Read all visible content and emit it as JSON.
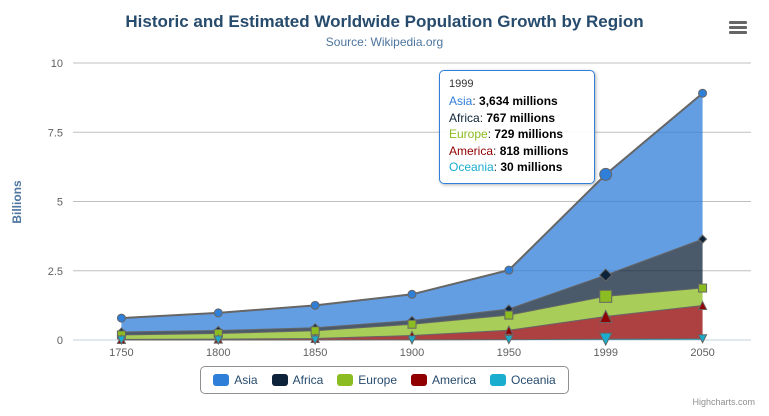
{
  "chart": {
    "title": "Historic and Estimated Worldwide Population Growth by Region",
    "subtitle": "Source: Wikipedia.org",
    "credits": "Highcharts.com",
    "menu_icon": "hamburger-icon"
  },
  "chart_data": {
    "type": "area",
    "stacking": "normal",
    "title": "Historic and Estimated Worldwide Population Growth by Region",
    "subtitle": "Source: Wikipedia.org",
    "xlabel": "",
    "ylabel": "Billions",
    "ylim": [
      0,
      10
    ],
    "yticks": [
      0,
      2.5,
      5,
      7.5,
      10
    ],
    "categories": [
      "1750",
      "1800",
      "1850",
      "1900",
      "1950",
      "1999",
      "2050"
    ],
    "units": "millions",
    "grid": true,
    "legend_position": "bottom",
    "line_color": "#666666",
    "fill_opacity": 0.75,
    "grid_line_color": "#C0C0C0",
    "axis_line_color": "#C0D0E0",
    "axis_label_color": "#606060",
    "hovered_category": "1999",
    "hovered_index": 5,
    "series": [
      {
        "name": "Asia",
        "color": "#2f7ed8",
        "marker": "circle",
        "values": [
          502,
          635,
          809,
          947,
          1402,
          3634,
          5268
        ]
      },
      {
        "name": "Africa",
        "color": "#0d233a",
        "marker": "diamond",
        "values": [
          106,
          107,
          111,
          133,
          221,
          767,
          1766
        ]
      },
      {
        "name": "Europe",
        "color": "#8bbc21",
        "marker": "square",
        "values": [
          163,
          203,
          276,
          408,
          547,
          729,
          628
        ]
      },
      {
        "name": "America",
        "color": "#910000",
        "marker": "triangle",
        "values": [
          18,
          31,
          54,
          156,
          339,
          818,
          1201
        ]
      },
      {
        "name": "Oceania",
        "color": "#1aadce",
        "marker": "triangle-down",
        "values": [
          2,
          2,
          2,
          6,
          13,
          30,
          46
        ]
      }
    ]
  },
  "tooltip": {
    "header": "1999",
    "rows": [
      {
        "label": "Asia",
        "value": "3,634 millions",
        "color": "#2f7ed8"
      },
      {
        "label": "Africa",
        "value": "767 millions",
        "color": "#0d233a"
      },
      {
        "label": "Europe",
        "value": "729 millions",
        "color": "#8bbc21"
      },
      {
        "label": "America",
        "value": "818 millions",
        "color": "#910000"
      },
      {
        "label": "Oceania",
        "value": "30 millions",
        "color": "#1aadce"
      }
    ]
  },
  "legend": {
    "items": [
      {
        "label": "Asia",
        "color": "#2f7ed8"
      },
      {
        "label": "Africa",
        "color": "#0d233a"
      },
      {
        "label": "Europe",
        "color": "#8bbc21"
      },
      {
        "label": "America",
        "color": "#910000"
      },
      {
        "label": "Oceania",
        "color": "#1aadce"
      }
    ]
  }
}
